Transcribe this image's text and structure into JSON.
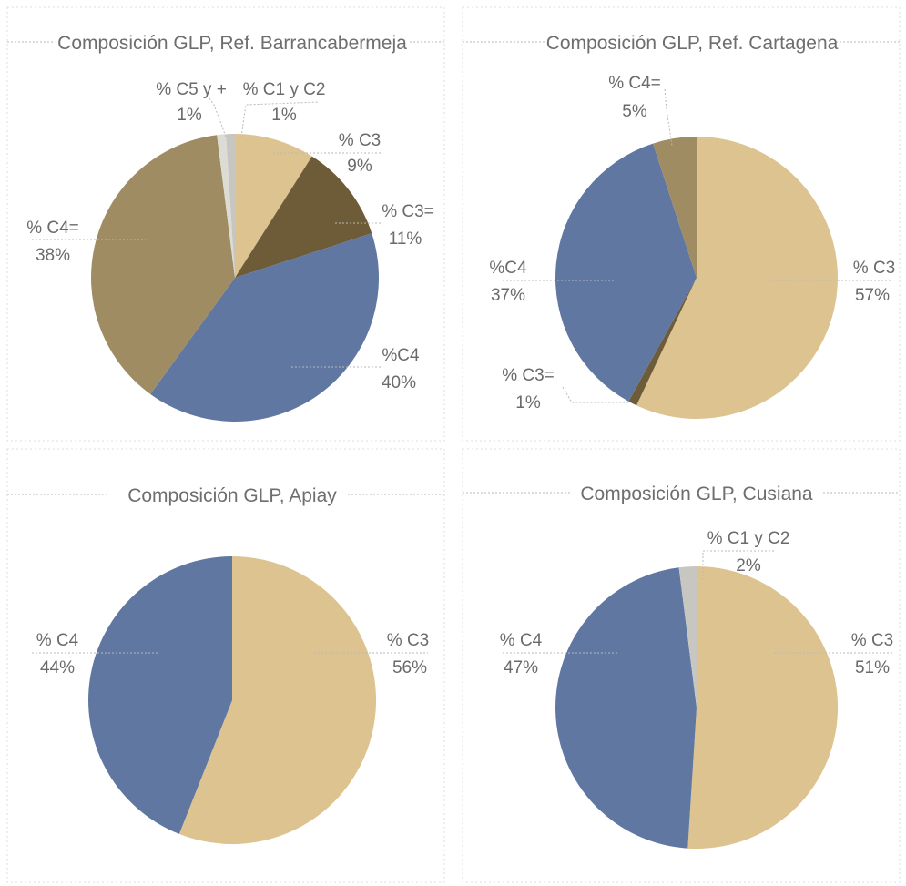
{
  "chart_data": [
    {
      "type": "pie",
      "title": "Composición GLP, Ref. Barrancabermeja",
      "slices": [
        {
          "name": "% C3",
          "label": "% C3",
          "value_label": "9%",
          "value": 9,
          "color": "#dcc38f"
        },
        {
          "name": "% C3=",
          "label": "% C3=",
          "value_label": "11%",
          "value": 11,
          "color": "#6e5b38"
        },
        {
          "name": "%C4",
          "label": "%C4",
          "value_label": "40%",
          "value": 40,
          "color": "#5f77a1"
        },
        {
          "name": "% C4=",
          "label": "% C4=",
          "value_label": "38%",
          "value": 38,
          "color": "#9f8c62"
        },
        {
          "name": "% C5 y +",
          "label": "% C5 y +",
          "value_label": "1%",
          "value": 1,
          "color": "#dcdcd4"
        },
        {
          "name": "% C1 y C2",
          "label": "% C1 y C2",
          "value_label": "1%",
          "value": 1,
          "color": "#c8c6c0"
        }
      ]
    },
    {
      "type": "pie",
      "title": "Composición GLP, Ref. Cartagena",
      "slices": [
        {
          "name": "% C3",
          "label": "% C3",
          "value_label": "57%",
          "value": 57,
          "color": "#dcc38f"
        },
        {
          "name": "% C3=",
          "label": "% C3=",
          "value_label": "1%",
          "value": 1,
          "color": "#6e5b38"
        },
        {
          "name": "%C4",
          "label": "%C4",
          "value_label": "37%",
          "value": 37,
          "color": "#5f77a1"
        },
        {
          "name": "% C4=",
          "label": "% C4=",
          "value_label": "5%",
          "value": 5,
          "color": "#9f8c62"
        }
      ]
    },
    {
      "type": "pie",
      "title": "Composición GLP, Apiay",
      "slices": [
        {
          "name": "% C3",
          "label": "% C3",
          "value_label": "56%",
          "value": 56,
          "color": "#dcc38f"
        },
        {
          "name": "% C4",
          "label": "% C4",
          "value_label": "44%",
          "value": 44,
          "color": "#5f77a1"
        }
      ]
    },
    {
      "type": "pie",
      "title": "Composición GLP, Cusiana",
      "slices": [
        {
          "name": "% C3",
          "label": "% C3",
          "value_label": "51%",
          "value": 51,
          "color": "#dcc38f"
        },
        {
          "name": "% C4",
          "label": "% C4",
          "value_label": "47%",
          "value": 47,
          "color": "#5f77a1"
        },
        {
          "name": "% C1 y C2",
          "label": "% C1 y C2",
          "value_label": "2%",
          "value": 2,
          "color": "#c8c6c0"
        }
      ]
    }
  ]
}
